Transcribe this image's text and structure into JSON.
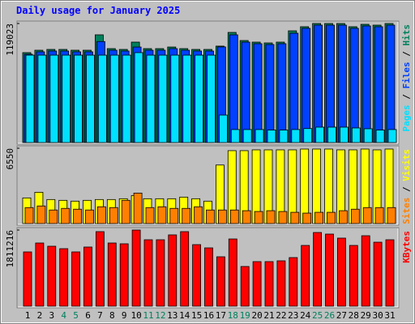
{
  "chart_data": [
    {
      "type": "bar",
      "title": "Daily usage for January 2025",
      "legend_separator": " / ",
      "ylim": [
        0,
        119023
      ],
      "yticks": [
        119023
      ],
      "series": [
        {
          "name": "Hits",
          "color": "#00805c",
          "values": [
            89900,
            92300,
            93100,
            93100,
            92300,
            92300,
            107700,
            93900,
            93100,
            100400,
            93900,
            93900,
            95500,
            93900,
            93100,
            93100,
            96400,
            110100,
            102000,
            100400,
            99600,
            100400,
            111700,
            115800,
            119023,
            119000,
            119000,
            115800,
            118200,
            117400,
            119000
          ]
        },
        {
          "name": "Files",
          "color": "#0040ff",
          "values": [
            88300,
            90700,
            91500,
            91500,
            90700,
            90700,
            101000,
            92300,
            91500,
            95500,
            92300,
            92300,
            93900,
            92300,
            91500,
            91500,
            95600,
            107700,
            100400,
            98800,
            98000,
            98800,
            109300,
            114200,
            117400,
            117400,
            117400,
            114200,
            116600,
            115800,
            117400
          ]
        },
        {
          "name": "Pages",
          "color": "#00e0ff",
          "values": [
            87400,
            87400,
            87400,
            87400,
            87400,
            87400,
            87400,
            87400,
            87400,
            89900,
            87400,
            87400,
            87400,
            87400,
            87400,
            87400,
            27500,
            13000,
            13000,
            13000,
            12500,
            12500,
            13000,
            14000,
            15400,
            15400,
            15400,
            14600,
            13800,
            12500,
            13000
          ]
        }
      ]
    },
    {
      "type": "bar",
      "legend_separator": " / ",
      "ylim": [
        0,
        6550
      ],
      "yticks": [
        6550
      ],
      "series": [
        {
          "name": "Visits",
          "color": "#ffff00",
          "values": [
            2230,
            2720,
            2090,
            2020,
            1950,
            2020,
            2090,
            2090,
            2160,
            2440,
            2160,
            2160,
            2160,
            2300,
            2160,
            1950,
            5090,
            6340,
            6340,
            6410,
            6410,
            6410,
            6410,
            6480,
            6480,
            6480,
            6410,
            6410,
            6480,
            6410,
            6480
          ]
        },
        {
          "name": "Sites",
          "color": "#ff8000",
          "values": [
            1390,
            1530,
            1180,
            1320,
            1250,
            1180,
            1460,
            1390,
            2020,
            2650,
            1390,
            1460,
            1320,
            1320,
            1460,
            1180,
            1180,
            1180,
            1120,
            1050,
            1120,
            1050,
            980,
            910,
            980,
            980,
            1120,
            1250,
            1390,
            1390,
            1390
          ]
        }
      ]
    },
    {
      "type": "bar",
      "ylim": [
        0,
        1811216
      ],
      "yticks": [
        1811216
      ],
      "categories": [
        "1",
        "2",
        "3",
        "4",
        "5",
        "6",
        "7",
        "8",
        "9",
        "10",
        "11",
        "12",
        "13",
        "14",
        "15",
        "16",
        "17",
        "18",
        "19",
        "20",
        "21",
        "22",
        "23",
        "24",
        "25",
        "26",
        "27",
        "28",
        "29",
        "30",
        "31"
      ],
      "category_colors": [
        "#000000",
        "#000000",
        "#000000",
        "#00805c",
        "#00805c",
        "#000000",
        "#000000",
        "#000000",
        "#000000",
        "#000000",
        "#00805c",
        "#00805c",
        "#000000",
        "#000000",
        "#000000",
        "#000000",
        "#000000",
        "#00805c",
        "#00805c",
        "#000000",
        "#000000",
        "#000000",
        "#000000",
        "#000000",
        "#00805c",
        "#00805c",
        "#000000",
        "#000000",
        "#000000",
        "#000000",
        "#000000"
      ],
      "series": [
        {
          "name": "KBytes",
          "color": "#ff0000",
          "values": [
            1291000,
            1503000,
            1426000,
            1368000,
            1291000,
            1407000,
            1773000,
            1503000,
            1484000,
            1811216,
            1580000,
            1580000,
            1696000,
            1773000,
            1464000,
            1387000,
            1175000,
            1599000,
            944000,
            1060000,
            1060000,
            1079000,
            1156000,
            1445000,
            1753000,
            1715000,
            1619000,
            1445000,
            1676000,
            1522000,
            1580000
          ]
        }
      ]
    }
  ]
}
